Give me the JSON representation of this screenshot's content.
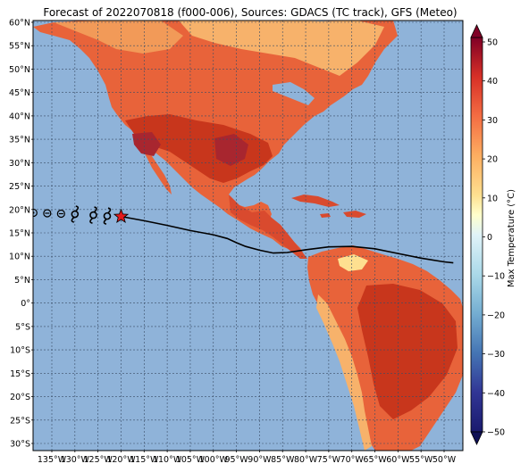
{
  "title": "Forecast of 2022070818 (f000-006), Sources: GDACS (TC track), GFS (Meteo)",
  "map": {
    "lat_labels": [
      "60°N",
      "55°N",
      "50°N",
      "45°N",
      "40°N",
      "35°N",
      "30°N",
      "25°N",
      "20°N",
      "15°N",
      "10°N",
      "5°N",
      "0°",
      "5°S",
      "10°S",
      "15°S",
      "20°S",
      "25°S",
      "30°S"
    ],
    "lon_labels": [
      "135°W",
      "130°W",
      "125°W",
      "120°W",
      "115°W",
      "110°W",
      "105°W",
      "100°W",
      "95°W",
      "90°W",
      "85°W",
      "80°W",
      "75°W",
      "70°W",
      "65°W",
      "60°W",
      "55°W",
      "50°W"
    ],
    "lon_range": [
      -140,
      -47
    ],
    "lat_range": [
      -32,
      60
    ],
    "ocean_color": "#8fb3d9",
    "track": {
      "points": [
        [
          -120,
          18.5
        ],
        [
          -115,
          17.6
        ],
        [
          -110,
          16.6
        ],
        [
          -105,
          15.5
        ],
        [
          -100,
          14.6
        ],
        [
          -97,
          13.8
        ],
        [
          -95,
          12.9
        ],
        [
          -93,
          12.1
        ],
        [
          -90,
          11.3
        ],
        [
          -87,
          10.7
        ],
        [
          -84,
          10.8
        ],
        [
          -80,
          11.4
        ],
        [
          -75,
          12.0
        ],
        [
          -70,
          12.1
        ],
        [
          -65,
          11.6
        ],
        [
          -60,
          10.6
        ],
        [
          -55,
          9.6
        ],
        [
          -50,
          8.8
        ],
        [
          -48,
          8.6
        ]
      ],
      "current_position": [
        -120,
        18.5
      ],
      "past_symbols": [
        {
          "lon": -139,
          "lat": 19.3,
          "type": "circle-dot"
        },
        {
          "lon": -136,
          "lat": 19.2,
          "type": "circle-minus"
        },
        {
          "lon": -133,
          "lat": 19.1,
          "type": "circle-minus"
        },
        {
          "lon": -130,
          "lat": 19.0,
          "type": "hurricane"
        },
        {
          "lon": -126,
          "lat": 18.8,
          "type": "hurricane"
        },
        {
          "lon": -123,
          "lat": 18.6,
          "type": "hurricane"
        }
      ],
      "marker_color": "#e31a1c"
    }
  },
  "colorbar": {
    "label": "Max Temperature (°C)",
    "ticks": [
      "50",
      "40",
      "30",
      "20",
      "10",
      "0",
      "−10",
      "−20",
      "−30",
      "−40",
      "−50"
    ],
    "colors": [
      "#ffffcc",
      "#fee090",
      "#fdae61",
      "#f46d43",
      "#d73027",
      "#a50026",
      "#67001f",
      "#e0f3f8",
      "#abd9e9",
      "#74add1",
      "#4575b4",
      "#313695",
      "#1a1a80"
    ]
  }
}
